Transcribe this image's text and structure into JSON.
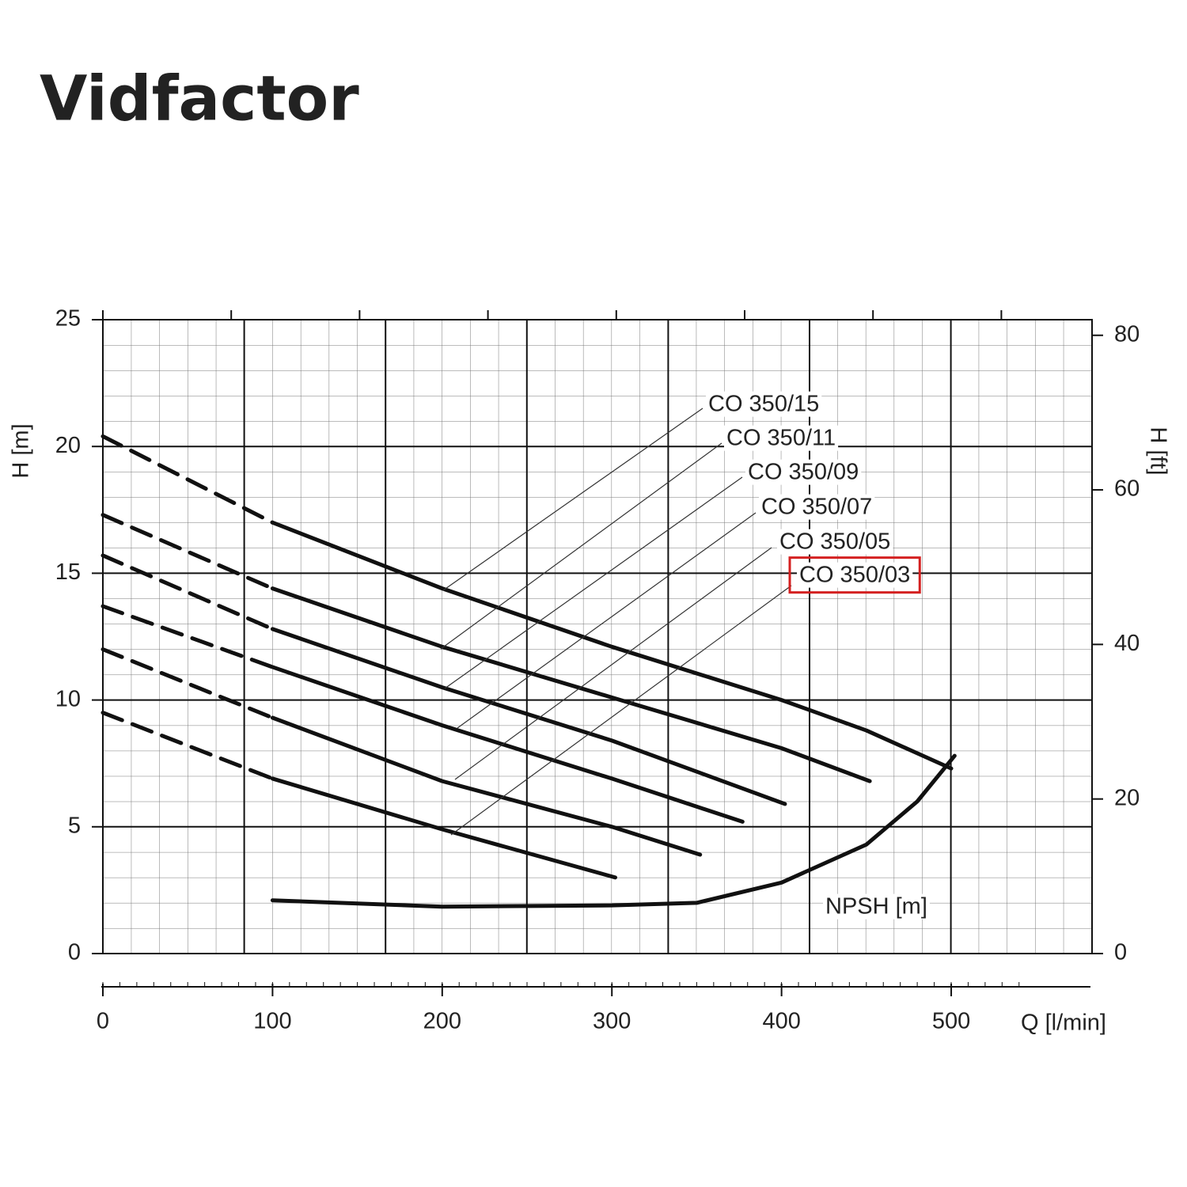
{
  "logo": "Vidfactor",
  "chart_data": {
    "type": "line",
    "x_label": "Q [l/min]",
    "y_label": "H [m]",
    "y2_label": "H [ft]",
    "xlim": [
      0,
      583
    ],
    "xticks": [
      0,
      100,
      200,
      300,
      400,
      500
    ],
    "ylim": [
      0,
      25
    ],
    "yticks": [
      0,
      5,
      10,
      15,
      20,
      25
    ],
    "y2lim": [
      0,
      82.02
    ],
    "y2ticks": [
      0,
      20,
      40,
      60,
      80
    ],
    "grid": true,
    "dashed_x_max": 100,
    "series": [
      {
        "name": "CO 350/15",
        "color": "#111111",
        "x": [
          0,
          100,
          200,
          300,
          400,
          450,
          500
        ],
        "values": [
          20.4,
          17.0,
          14.4,
          12.1,
          10.0,
          8.8,
          7.3
        ]
      },
      {
        "name": "CO 350/11",
        "color": "#111111",
        "x": [
          0,
          100,
          200,
          300,
          400,
          452
        ],
        "values": [
          17.3,
          14.4,
          12.1,
          10.1,
          8.1,
          6.8
        ]
      },
      {
        "name": "CO 350/09",
        "color": "#111111",
        "x": [
          0,
          100,
          200,
          300,
          402
        ],
        "values": [
          15.7,
          12.8,
          10.5,
          8.4,
          5.9
        ]
      },
      {
        "name": "CO 350/07",
        "color": "#111111",
        "x": [
          0,
          100,
          200,
          300,
          377
        ],
        "values": [
          13.7,
          11.3,
          9.0,
          6.9,
          5.2
        ]
      },
      {
        "name": "CO 350/05",
        "color": "#111111",
        "x": [
          0,
          100,
          200,
          300,
          352
        ],
        "values": [
          12.0,
          9.3,
          6.8,
          5.0,
          3.9
        ]
      },
      {
        "name": "CO 350/03",
        "color": "#111111",
        "highlighted": true,
        "x": [
          0,
          100,
          200,
          302
        ],
        "values": [
          9.5,
          6.9,
          4.9,
          3.0
        ]
      },
      {
        "name": "NPSH [m]",
        "color": "#111111",
        "x": [
          100,
          200,
          300,
          350,
          400,
          450,
          480,
          502
        ],
        "values": [
          2.1,
          1.85,
          1.9,
          2.0,
          2.8,
          4.3,
          6.0,
          7.8
        ]
      }
    ]
  }
}
